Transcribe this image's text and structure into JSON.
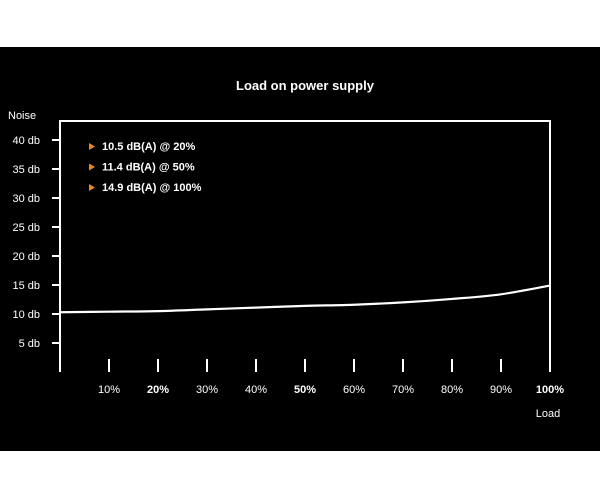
{
  "chart_data": {
    "type": "line",
    "title": "Load on power supply",
    "ylabel": "Noise",
    "xlabel": "Load",
    "ylim": [
      0,
      45
    ],
    "xlim": [
      0,
      100
    ],
    "y_ticks": [
      {
        "value": 5,
        "label": "5 db"
      },
      {
        "value": 10,
        "label": "10 db"
      },
      {
        "value": 15,
        "label": "15 db"
      },
      {
        "value": 20,
        "label": "20 db"
      },
      {
        "value": 25,
        "label": "25 db"
      },
      {
        "value": 30,
        "label": "30 db"
      },
      {
        "value": 35,
        "label": "35 db"
      },
      {
        "value": 40,
        "label": "40 db"
      }
    ],
    "x_ticks": [
      {
        "value": 10,
        "label": "10%",
        "bold": false
      },
      {
        "value": 20,
        "label": "20%",
        "bold": true
      },
      {
        "value": 30,
        "label": "30%",
        "bold": false
      },
      {
        "value": 40,
        "label": "40%",
        "bold": false
      },
      {
        "value": 50,
        "label": "50%",
        "bold": true
      },
      {
        "value": 60,
        "label": "60%",
        "bold": false
      },
      {
        "value": 70,
        "label": "70%",
        "bold": false
      },
      {
        "value": 80,
        "label": "80%",
        "bold": false
      },
      {
        "value": 90,
        "label": "90%",
        "bold": false
      },
      {
        "value": 100,
        "label": "100%",
        "bold": true
      }
    ],
    "series": [
      {
        "x": [
          0,
          10,
          20,
          30,
          40,
          50,
          60,
          70,
          80,
          90,
          100
        ],
        "y": [
          10.3,
          10.4,
          10.5,
          10.8,
          11.1,
          11.4,
          11.6,
          12.0,
          12.6,
          13.4,
          14.9
        ]
      }
    ],
    "annotations": [
      "10.5 dB(A) @ 20%",
      "11.4 dB(A) @ 50%",
      "14.9 dB(A) @ 100%"
    ],
    "grid": false,
    "legend_placement": "top-left",
    "colors": {
      "background": "#000000",
      "line": "#ffffff",
      "axis": "#ffffff",
      "text": "#ffffff",
      "bullet": "#e8862a"
    }
  }
}
